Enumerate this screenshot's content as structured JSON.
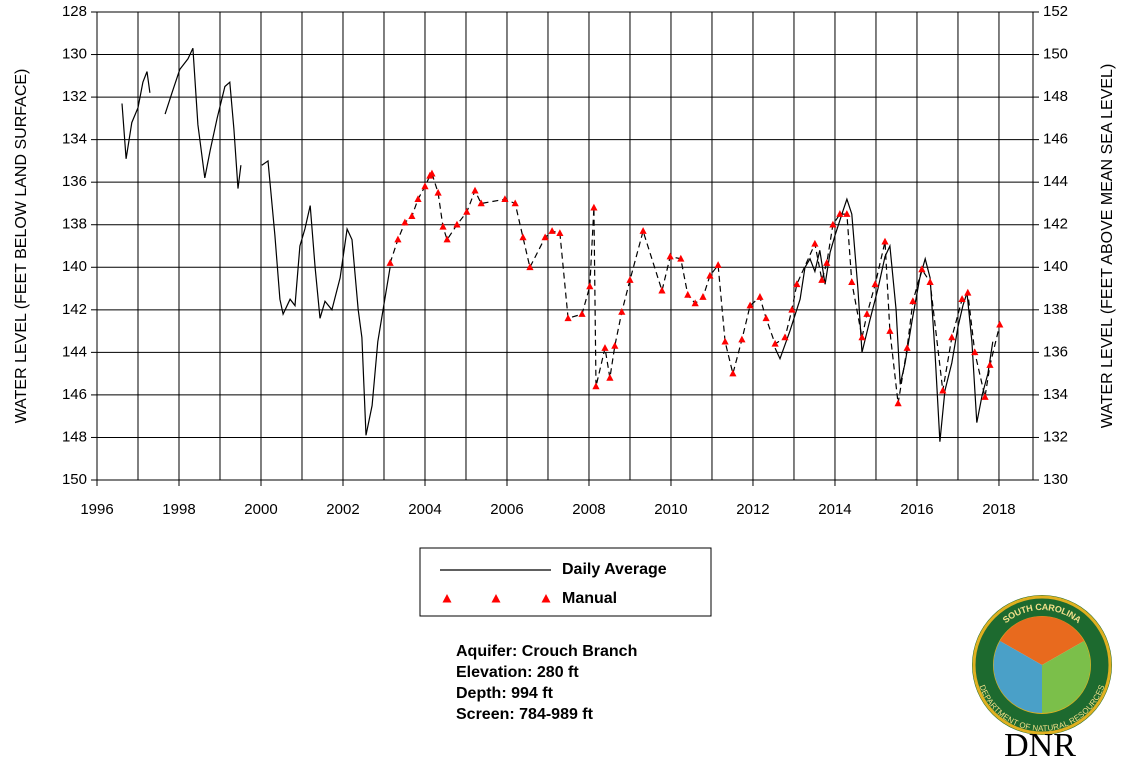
{
  "chart_data": {
    "type": "line",
    "y_label": "WATER LEVEL (FEET BELOW LAND SURFACE)",
    "y2_label": "WATER LEVEL (FEET ABOVE MEAN SEA LEVEL)",
    "xlim": [
      1996,
      2018.83
    ],
    "xticks": [
      1996,
      1998,
      2000,
      2002,
      2004,
      2006,
      2008,
      2010,
      2012,
      2014,
      2016,
      2018
    ],
    "xgrid_minor": [
      1997,
      1999,
      2001,
      2003,
      2005,
      2007,
      2009,
      2011,
      2013,
      2015,
      2017
    ],
    "ylim": [
      150,
      128
    ],
    "yticks": [
      150,
      148,
      146,
      144,
      142,
      140,
      138,
      136,
      134,
      132,
      130,
      128
    ],
    "y2lim": [
      130,
      152
    ],
    "y2ticks": [
      130,
      132,
      134,
      136,
      138,
      140,
      142,
      144,
      146,
      148,
      150,
      152
    ],
    "grid": true,
    "series": [
      {
        "name": "Daily Average",
        "color": "#000000",
        "marker": "none",
        "line": "solid",
        "x": [
          1996.61,
          1996.71,
          1996.85,
          1997.0,
          1997.12,
          1997.22,
          1997.29,
          null,
          1997.66,
          1997.83,
          1998.02,
          1998.22,
          1998.34,
          1998.46,
          1998.63,
          1998.76,
          1998.93,
          1999.12,
          1999.24,
          1999.34,
          1999.44,
          1999.51,
          null,
          2000.02,
          2000.17,
          2000.34,
          2000.46,
          2000.54,
          2000.71,
          2000.83,
          2000.95,
          2001.07,
          2001.2,
          2001.32,
          2001.44,
          2001.56,
          2001.73,
          2001.93,
          2002.1,
          2002.22,
          2002.37,
          2002.46,
          2002.56,
          2002.71,
          2002.85,
          2003.02,
          2003.15,
          null,
          2012.54,
          2012.66,
          2012.9,
          2013.15,
          2013.27,
          2013.39,
          2013.51,
          2013.63,
          2013.76,
          2013.88,
          2014.0,
          2014.17,
          2014.29,
          2014.41,
          2014.56,
          2014.66,
          2014.85,
          2015.05,
          2015.22,
          2015.34,
          2015.49,
          2015.59,
          2015.71,
          2015.88,
          2016.07,
          2016.2,
          2016.32,
          2016.44,
          2016.56,
          2016.68,
          2016.85,
          2017.0,
          2017.12,
          2017.22,
          2017.34,
          2017.46,
          2017.59,
          2017.73,
          2017.85
        ],
        "values": [
          132.3,
          134.9,
          133.2,
          132.5,
          131.3,
          130.8,
          131.8,
          null,
          132.8,
          131.8,
          130.7,
          130.2,
          129.7,
          133.3,
          135.8,
          134.5,
          133,
          131.5,
          131.3,
          133.5,
          136.3,
          135.2,
          null,
          135.2,
          135,
          138.5,
          141.5,
          142.2,
          141.5,
          141.8,
          139,
          138.2,
          137.1,
          140,
          142.4,
          141.6,
          142,
          140.5,
          138.2,
          138.7,
          142,
          143.3,
          147.9,
          146.5,
          143.5,
          141.5,
          140,
          null,
          143.8,
          144.3,
          143,
          141.5,
          140,
          139.6,
          140.2,
          139.2,
          140.8,
          139.3,
          138.5,
          137.5,
          136.8,
          137.5,
          141,
          144,
          142.5,
          141,
          139.5,
          139,
          142,
          145.5,
          144.5,
          142.5,
          140.5,
          139.6,
          140.5,
          144,
          148.2,
          145.8,
          144.5,
          142.8,
          141.8,
          141.2,
          143.5,
          147.3,
          146,
          145,
          143.5
        ]
      },
      {
        "name": "Manual",
        "color": "#ff0000",
        "marker": "triangle",
        "line": "dashed",
        "x": [
          2003.15,
          2003.34,
          2003.51,
          2003.68,
          2003.83,
          2004.0,
          2004.12,
          2004.17,
          2004.32,
          2004.44,
          2004.54,
          2004.78,
          2005.02,
          2005.22,
          2005.37,
          2005.95,
          2006.2,
          2006.39,
          2006.56,
          2006.93,
          2007.1,
          2007.29,
          2007.49,
          2007.83,
          2008.02,
          2008.12,
          2008.17,
          2008.39,
          2008.51,
          2008.63,
          2008.8,
          2009.0,
          2009.32,
          2009.78,
          2009.98,
          2010.24,
          2010.41,
          2010.59,
          2010.78,
          2010.95,
          2011.15,
          2011.32,
          2011.51,
          2011.73,
          2011.93,
          2012.17,
          2012.32,
          2012.54,
          2012.78,
          2012.95,
          2013.07,
          2013.51,
          2013.68,
          2013.8,
          2013.95,
          2014.12,
          2014.29,
          2014.41,
          2014.66,
          2014.78,
          2014.98,
          2015.22,
          2015.34,
          2015.54,
          2015.76,
          2015.9,
          2016.12,
          2016.32,
          2016.63,
          2016.85,
          2017.1,
          2017.24,
          2017.41,
          2017.66,
          2017.78,
          2018.02
        ],
        "values": [
          139.8,
          138.7,
          137.9,
          137.6,
          136.8,
          136.2,
          135.7,
          135.6,
          136.5,
          138.1,
          138.7,
          138,
          137.4,
          136.4,
          137,
          136.8,
          137,
          138.6,
          140,
          138.6,
          138.3,
          138.4,
          142.4,
          142.2,
          140.9,
          137.2,
          145.6,
          143.8,
          145.2,
          143.7,
          142.1,
          140.6,
          138.3,
          141.1,
          139.5,
          139.6,
          141.3,
          141.7,
          141.4,
          140.4,
          139.9,
          143.5,
          145,
          143.4,
          141.8,
          141.4,
          142.4,
          143.6,
          143.3,
          142,
          140.8,
          138.9,
          140.6,
          139.8,
          138,
          137.5,
          137.5,
          140.7,
          143.3,
          142.2,
          140.8,
          138.8,
          143,
          146.4,
          143.8,
          141.6,
          140.1,
          140.7,
          145.8,
          143.3,
          141.5,
          141.2,
          144,
          146.1,
          144.6,
          142.7
        ]
      }
    ],
    "annotations": [
      "Aquifer: Crouch Branch",
      "Elevation: 280 ft",
      "Depth: 994 ft",
      "Screen: 784-989 ft"
    ]
  },
  "logo": {
    "ring_top": "SOUTH CAROLINA",
    "ring_bottom": "DEPARTMENT OF NATURAL RESOURCES",
    "label": "DNR"
  }
}
